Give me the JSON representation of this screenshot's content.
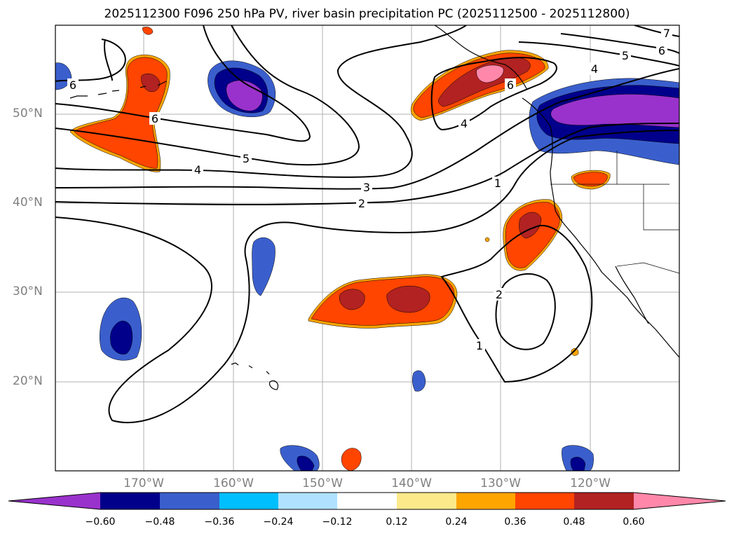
{
  "title": "2025112300 F096 250 hPa PV, river basin precipitation PC (2025112500 - 2025112800)",
  "lat_labels": [
    "50°N",
    "40°N",
    "30°N",
    "20°N"
  ],
  "lon_labels": [
    "170°W",
    "160°W",
    "150°W",
    "140°W",
    "130°W",
    "120°W"
  ],
  "contour_labels": [
    "6",
    "6",
    "5",
    "4",
    "3",
    "2",
    "1",
    "2",
    "1",
    "4",
    "6",
    "5",
    "6",
    "4",
    "7"
  ],
  "colorbar": {
    "ticks": [
      "−0.60",
      "−0.48",
      "−0.36",
      "−0.24",
      "−0.12",
      "0.12",
      "0.24",
      "0.36",
      "0.48",
      "0.60"
    ],
    "colors": [
      "#9932cc",
      "#00008b",
      "#3a5fcd",
      "#00bfff",
      "#b0e2ff",
      "#ffffff",
      "#fce98a",
      "#ffa500",
      "#ff4500",
      "#b22222",
      "#ff88aa"
    ]
  },
  "shading": {
    "neg_outer": "#3a5fcd",
    "neg_mid": "#00008b",
    "neg_inner": "#9932cc",
    "pos_outer": "#ff4500",
    "pos_mid": "#b22222",
    "pos_inner": "#ff88aa",
    "pos_edge": "#ffa500"
  }
}
